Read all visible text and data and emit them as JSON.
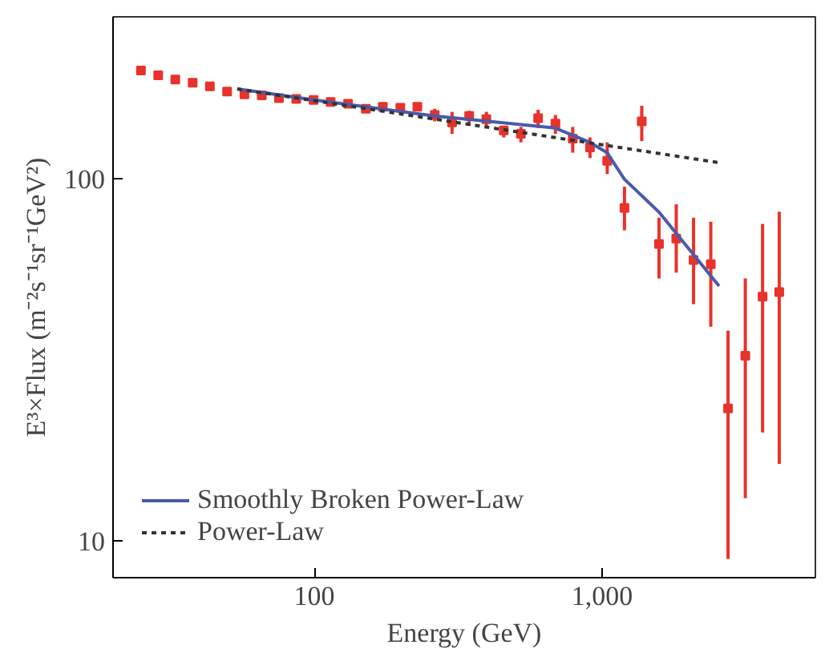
{
  "chart_data": {
    "type": "scatter",
    "xlabel": "Energy (GeV)",
    "ylabel": "E³×Flux (m⁻²s⁻¹sr⁻¹GeV²)",
    "log": "xy",
    "grid": false,
    "legend": "bottom left",
    "xlim": [
      20,
      5500
    ],
    "ylim": [
      7.9,
      280
    ],
    "xticks": [
      100,
      {
        "value": 1000,
        "label": "1,000"
      }
    ],
    "yticks": [
      10,
      100
    ],
    "series": [
      {
        "color": "#e8322b",
        "marker": "square",
        "x": [
          25.0,
          28.7,
          32.9,
          37.8,
          43.4,
          49.8,
          57.2,
          65.7,
          75.4,
          86.6,
          99.4,
          114,
          131,
          151,
          173,
          199,
          228,
          262,
          301,
          345,
          396,
          455,
          522,
          599,
          688,
          790,
          907,
          1041,
          1195,
          1372,
          1575,
          1808,
          2076,
          2383,
          2736,
          3141,
          3606,
          4120
        ],
        "values": [
          199,
          193,
          188,
          184,
          180,
          174,
          171,
          170,
          167,
          166,
          165,
          163,
          161,
          156,
          158,
          157,
          158,
          150,
          143,
          149,
          146,
          136,
          133,
          147,
          142,
          129,
          122,
          112,
          83,
          144,
          66,
          68.3,
          59.6,
          58,
          23.2,
          32.4,
          47.2,
          48.6
        ],
        "errors": [
          null,
          null,
          null,
          null,
          null,
          null,
          null,
          null,
          null,
          null,
          null,
          null,
          null,
          null,
          null,
          null,
          null,
          [
            144,
            156
          ],
          [
            133,
            153
          ],
          [
            140,
            154
          ],
          [
            139,
            153
          ],
          [
            130,
            140
          ],
          [
            126,
            139
          ],
          [
            138,
            155
          ],
          [
            133,
            150
          ],
          [
            118,
            139
          ],
          [
            114,
            130
          ],
          [
            103,
            126
          ],
          [
            72,
            95
          ],
          [
            127,
            159
          ],
          [
            53,
            78
          ],
          [
            55,
            85
          ],
          [
            45,
            78
          ],
          [
            39,
            76
          ],
          [
            8.9,
            38
          ],
          [
            13.1,
            53
          ],
          [
            19.9,
            75
          ],
          [
            16.3,
            81
          ]
        ]
      },
      {
        "type": "line",
        "name": "Smoothly Broken Power-Law",
        "color": "#4a5aaa",
        "line_style": "solid",
        "x": [
          54,
          100,
          262,
          687,
          906,
          1040,
          1194,
          1571,
          2546
        ],
        "values": [
          177,
          165,
          149,
          138,
          126,
          118,
          99.7,
          81,
          50.5
        ]
      },
      {
        "type": "line",
        "name": "Power-Law",
        "color": "#333333",
        "line_style": "dotted",
        "x": [
          54,
          2588
        ],
        "values": [
          177,
          110.5
        ]
      }
    ]
  }
}
